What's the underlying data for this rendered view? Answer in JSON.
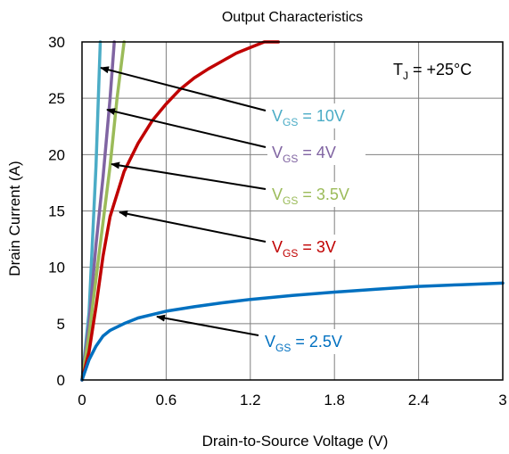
{
  "chart_data": {
    "type": "line",
    "title": "Output Characteristics",
    "xlabel": "Drain-to-Source Voltage (V)",
    "ylabel": "Drain Current (A)",
    "xlim": [
      0,
      3
    ],
    "ylim": [
      0,
      30
    ],
    "xticks": [
      0,
      0.6,
      1.2,
      1.8,
      2.4,
      3
    ],
    "xtick_labels": [
      "0",
      "0.6",
      "1.2",
      "1.8",
      "2.4",
      "3"
    ],
    "yticks": [
      0,
      5,
      10,
      15,
      20,
      25,
      30
    ],
    "ytick_labels": [
      "0",
      "5",
      "10",
      "15",
      "20",
      "25",
      "30"
    ],
    "grid": true,
    "annotation": {
      "prefix": "T",
      "sub": "J",
      "suffix": " = +25°C"
    },
    "series": [
      {
        "name": "V_GS = 10V",
        "color": "#4bacc6",
        "label": {
          "main": "V",
          "sub": "GS",
          "suffix": " = 10V"
        },
        "points": [
          [
            0,
            0
          ],
          [
            0.05,
            6
          ],
          [
            0.1,
            19
          ],
          [
            0.13,
            30
          ]
        ]
      },
      {
        "name": "V_GS = 4V",
        "color": "#8064a2",
        "label": {
          "main": "V",
          "sub": "GS",
          "suffix": " = 4V"
        },
        "points": [
          [
            0,
            0
          ],
          [
            0.05,
            5
          ],
          [
            0.1,
            12
          ],
          [
            0.15,
            18
          ],
          [
            0.2,
            25
          ],
          [
            0.23,
            30
          ]
        ]
      },
      {
        "name": "V_GS = 3.5V",
        "color": "#9bbb59",
        "label": {
          "main": "V",
          "sub": "GS",
          "suffix": " = 3.5V"
        },
        "points": [
          [
            0,
            0
          ],
          [
            0.05,
            4
          ],
          [
            0.1,
            9
          ],
          [
            0.15,
            14
          ],
          [
            0.2,
            19
          ],
          [
            0.25,
            25
          ],
          [
            0.3,
            30
          ]
        ]
      },
      {
        "name": "V_GS = 3V",
        "color": "#c00000",
        "label": {
          "main": "V",
          "sub": "GS",
          "suffix": " = 3V"
        },
        "points": [
          [
            0,
            0
          ],
          [
            0.05,
            2.5
          ],
          [
            0.1,
            6.5
          ],
          [
            0.15,
            11
          ],
          [
            0.2,
            14.5
          ],
          [
            0.3,
            18.5
          ],
          [
            0.4,
            21
          ],
          [
            0.5,
            23
          ],
          [
            0.6,
            24.5
          ],
          [
            0.7,
            25.8
          ],
          [
            0.8,
            26.8
          ],
          [
            0.9,
            27.6
          ],
          [
            1.0,
            28.3
          ],
          [
            1.1,
            29
          ],
          [
            1.2,
            29.5
          ],
          [
            1.3,
            30
          ],
          [
            1.4,
            30
          ]
        ]
      },
      {
        "name": "V_GS = 2.5V",
        "color": "#0070c0",
        "label": {
          "main": "V",
          "sub": "GS",
          "suffix": " = 2.5V"
        },
        "points": [
          [
            0,
            0
          ],
          [
            0.05,
            1.8
          ],
          [
            0.1,
            3.0
          ],
          [
            0.15,
            3.9
          ],
          [
            0.2,
            4.4
          ],
          [
            0.3,
            5.0
          ],
          [
            0.4,
            5.5
          ],
          [
            0.6,
            6.1
          ],
          [
            0.8,
            6.5
          ],
          [
            1.0,
            6.85
          ],
          [
            1.2,
            7.15
          ],
          [
            1.5,
            7.5
          ],
          [
            1.8,
            7.8
          ],
          [
            2.1,
            8.05
          ],
          [
            2.4,
            8.3
          ],
          [
            2.7,
            8.45
          ],
          [
            3.0,
            8.6
          ]
        ]
      }
    ]
  }
}
